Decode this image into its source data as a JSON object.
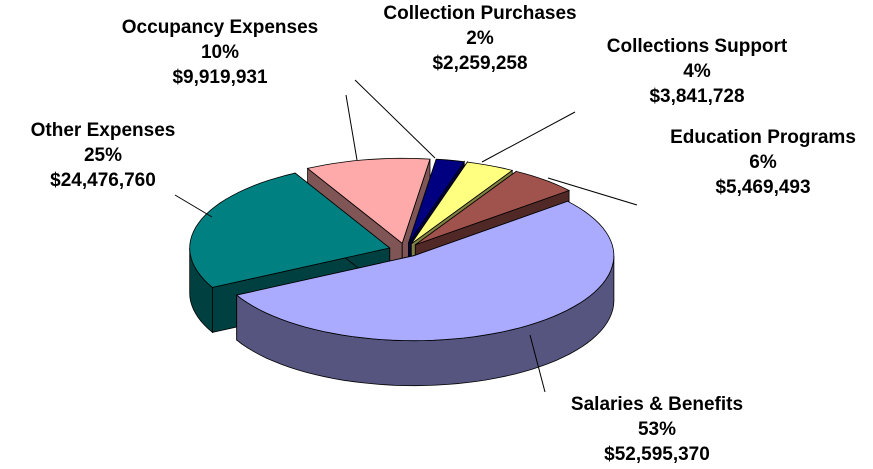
{
  "chart_data": {
    "type": "pie3d",
    "categories": [
      "Collection Purchases",
      "Collections Support",
      "Education Programs",
      "Salaries & Benefits",
      "Other Expenses",
      "Occupancy Expenses"
    ],
    "values": [
      2259258,
      3841728,
      5469493,
      52595370,
      24476760,
      9919931
    ],
    "value_labels": [
      "$2,259,258",
      "$3,841,728",
      "$5,469,493",
      "$52,595,370",
      "$24,476,760",
      "$9,919,931"
    ],
    "percent_labels": [
      "2%",
      "4%",
      "6%",
      "53%",
      "25%",
      "10%"
    ],
    "colors": [
      "#000080",
      "#ffff80",
      "#a0524d",
      "#aaaaff",
      "#008080",
      "#ffaaaa"
    ]
  }
}
